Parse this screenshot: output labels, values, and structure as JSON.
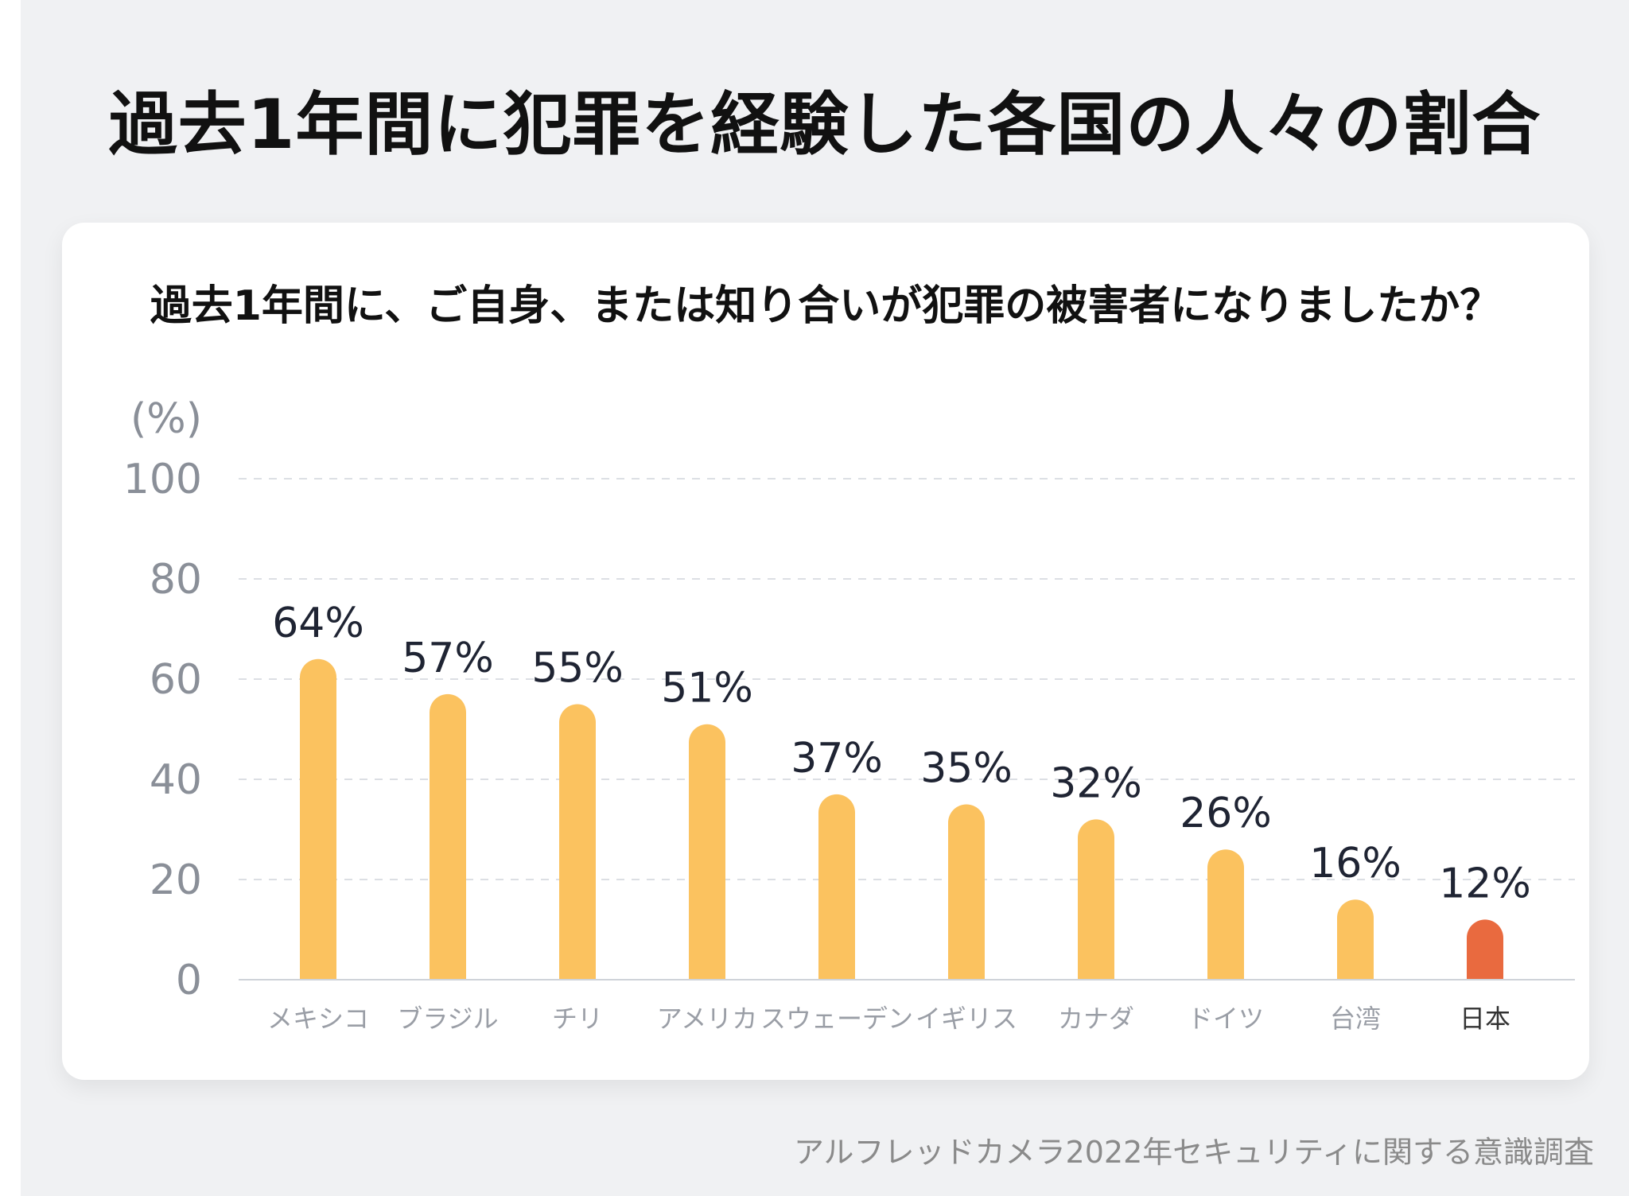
{
  "title": "過去1年間に犯罪を経験した各国の人々の割合",
  "question": "過去1年間に、ご自身、または知り合いが犯罪の被害者になりましたか？",
  "source": "アルフレッドカメラ2022年セキュリティに関する意識調査",
  "colors": {
    "background": "#f0f1f3",
    "card": "#ffffff",
    "bar": "#fbc25f",
    "highlight_bar": "#e96a3f",
    "axis_text": "#8a8f98",
    "value_text": "#1f2433",
    "grid": "#dcdfe4"
  },
  "chart_data": {
    "type": "bar",
    "unit_label": "(%)",
    "ylim": [
      0,
      100
    ],
    "yticks": [
      0,
      20,
      40,
      60,
      80,
      100
    ],
    "grid": true,
    "categories": [
      "メキシコ",
      "ブラジル",
      "チリ",
      "アメリカ",
      "スウェーデン",
      "イギリス",
      "カナダ",
      "ドイツ",
      "台湾",
      "日本"
    ],
    "values": [
      64,
      57,
      55,
      51,
      37,
      35,
      32,
      26,
      16,
      12
    ],
    "value_labels": [
      "64%",
      "57%",
      "55%",
      "51%",
      "37%",
      "35%",
      "32%",
      "26%",
      "16%",
      "12%"
    ],
    "highlight": "日本"
  }
}
